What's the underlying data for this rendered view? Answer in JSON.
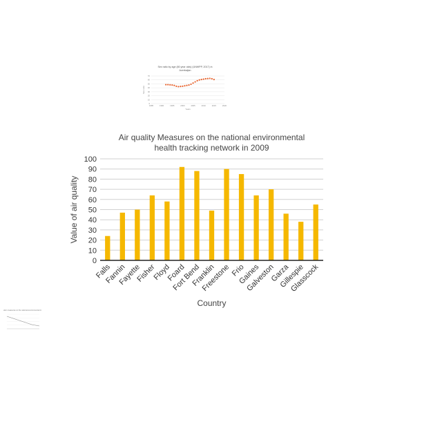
{
  "thumbnail_top": {
    "title": "Sex ratio by age (80 year olds) (UNWPP, 2017) in Azerbaijan",
    "xlabel": "Years",
    "ylabel": "Sex ratio",
    "x_ticks": [
      "1985",
      "1990",
      "1995",
      "2000",
      "2005",
      "2010",
      "2015",
      "2020"
    ],
    "y_ticks": [
      "0",
      "10",
      "20",
      "30",
      "40",
      "50",
      "60",
      "70"
    ],
    "points": [
      [
        1992,
        48
      ],
      [
        1993,
        48
      ],
      [
        1994,
        47.5
      ],
      [
        1995,
        47
      ],
      [
        1996,
        46
      ],
      [
        1997,
        44
      ],
      [
        1998,
        43
      ],
      [
        1999,
        43.5
      ],
      [
        2000,
        44
      ],
      [
        2001,
        45
      ],
      [
        2002,
        46
      ],
      [
        2003,
        47
      ],
      [
        2004,
        49
      ],
      [
        2005,
        52
      ],
      [
        2006,
        55
      ],
      [
        2007,
        58
      ],
      [
        2008,
        60
      ],
      [
        2009,
        61
      ],
      [
        2010,
        62
      ],
      [
        2011,
        63
      ],
      [
        2012,
        63.5
      ],
      [
        2013,
        64
      ],
      [
        2014,
        63
      ],
      [
        2015,
        61
      ]
    ],
    "color": "#e8622c"
  },
  "thumbnail_left": {
    "title": "Air pollution measures on the national environmental tracking",
    "color": "#8a8a8a"
  },
  "chart_data": {
    "type": "bar",
    "title": "Air quality Measures on the national environmental health tracking network in 2009",
    "title_lines": [
      "Air quality Measures on the national environmental",
      "health tracking network in 2009"
    ],
    "xlabel": "Country",
    "ylabel": "Value of  air quality",
    "categories": [
      "Falls",
      "Fannin",
      "Fayette",
      "Fisher",
      "Floyd",
      "Foard",
      "Fort Bend",
      "Franklin",
      "Freestone",
      "Frio",
      "Gaines",
      "Galveston",
      "Garza",
      "Gillespie",
      "Glasscock"
    ],
    "values": [
      24,
      47,
      50,
      64,
      58,
      92,
      88,
      49,
      90,
      85,
      64,
      70,
      46,
      38,
      55
    ],
    "ylim": [
      0,
      100
    ],
    "yticks": [
      0,
      10,
      20,
      30,
      40,
      50,
      60,
      70,
      80,
      90,
      100
    ],
    "grid": true,
    "bar_color": "#f5b800"
  }
}
